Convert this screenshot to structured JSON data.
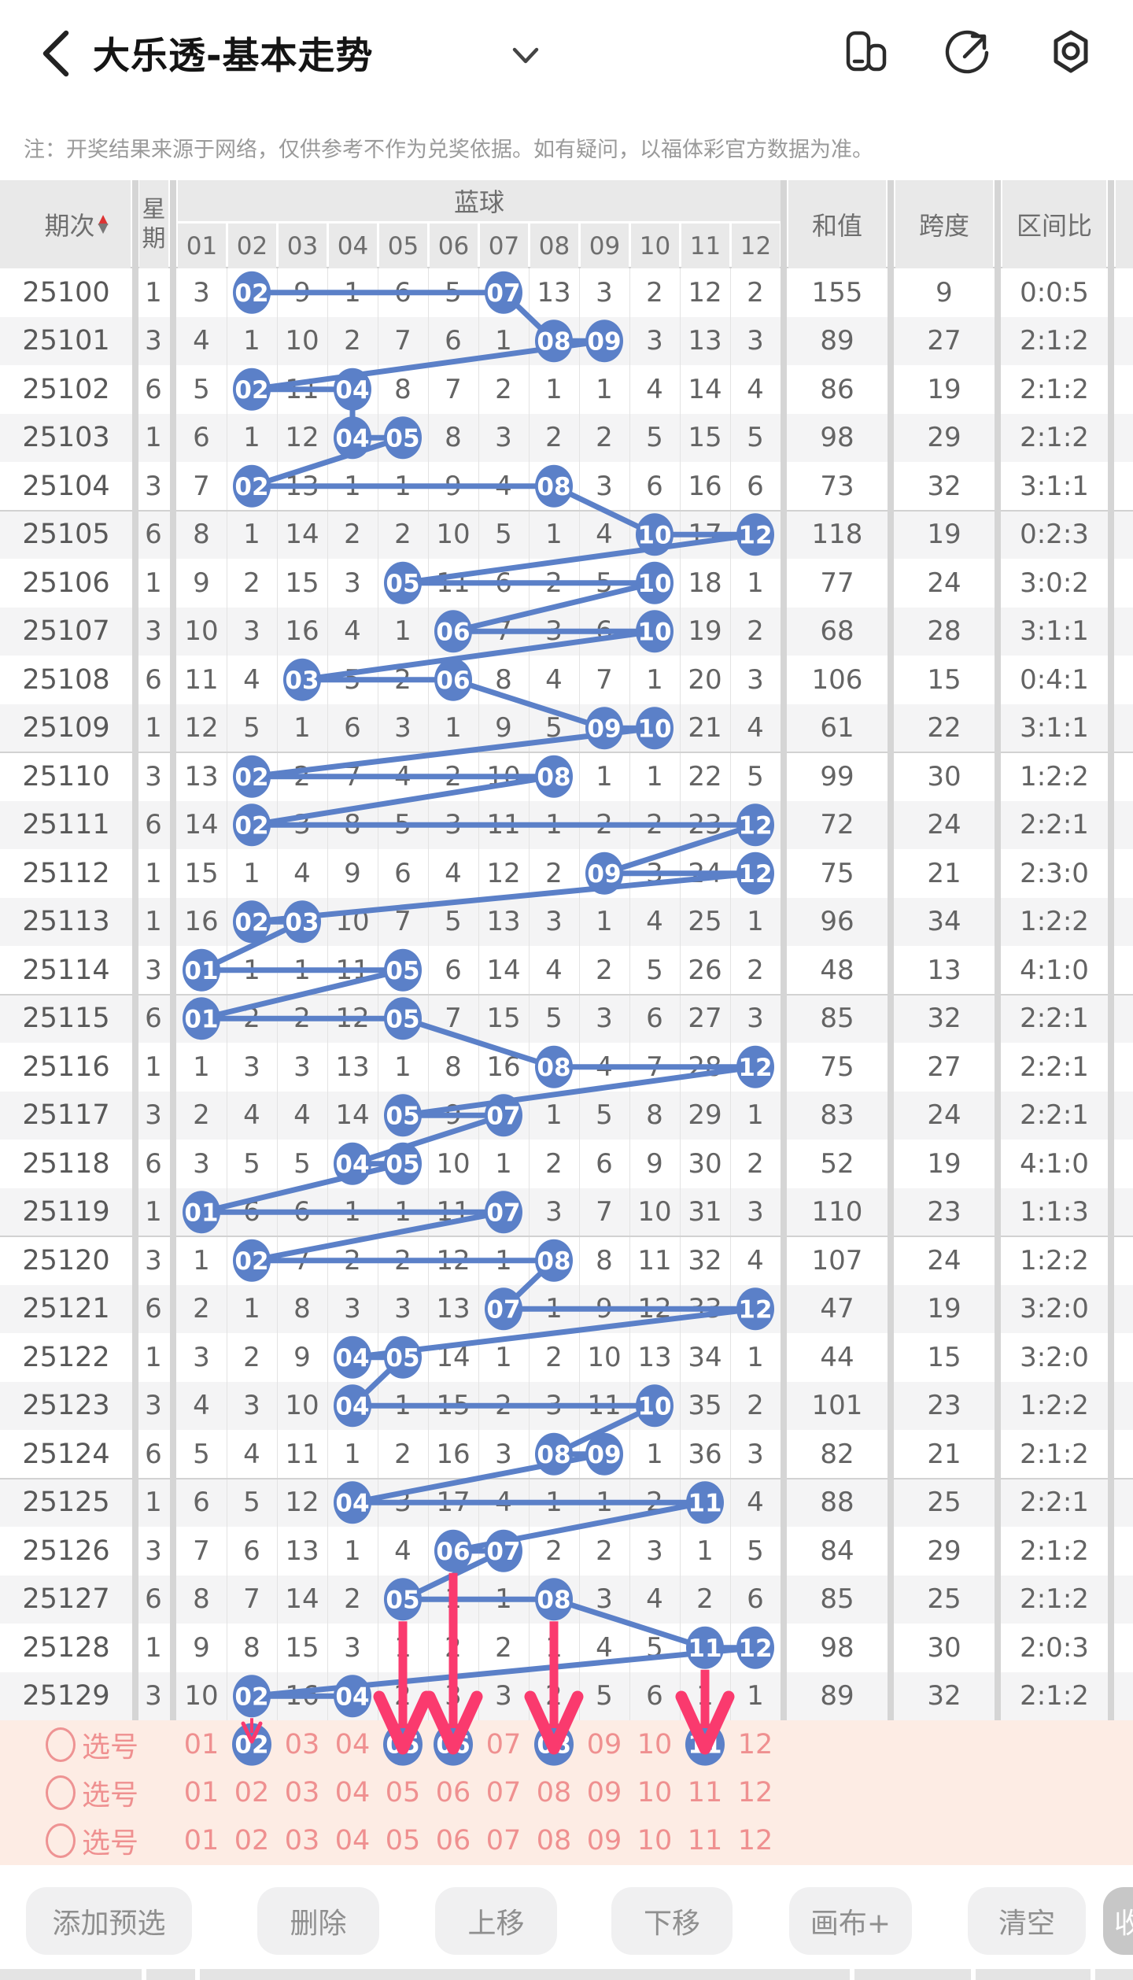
{
  "app": {
    "title": "大乐透-基本走势",
    "back_icon": "back-chevron-icon",
    "action_icons": [
      "app-switcher-icon",
      "share-icon",
      "settings-icon"
    ]
  },
  "notice": "注：开奖结果来源于网络，仅供参考不作为兑奖依据。如有疑问，以福体彩官方数据为准。",
  "chart": {
    "headers": {
      "period": "期次",
      "week": "星期",
      "group": "蓝球",
      "ball_labels": [
        "01",
        "02",
        "03",
        "04",
        "05",
        "06",
        "07",
        "08",
        "09",
        "10",
        "11",
        "12"
      ],
      "sum": "和值",
      "span": "跨度",
      "ratio": "区间比"
    },
    "rows": [
      {
        "period": "25100",
        "week": "1",
        "cells": [
          "3",
          "02",
          "9",
          "1",
          "6",
          "5",
          "07",
          "13",
          "3",
          "2",
          "12",
          "2"
        ],
        "circled": [
          2,
          7
        ],
        "sum": "155",
        "span": "9",
        "ratio": "0:0:5"
      },
      {
        "period": "25101",
        "week": "3",
        "cells": [
          "4",
          "1",
          "10",
          "2",
          "7",
          "6",
          "1",
          "08",
          "09",
          "3",
          "13",
          "3"
        ],
        "circled": [
          8,
          9
        ],
        "sum": "89",
        "span": "27",
        "ratio": "2:1:2"
      },
      {
        "period": "25102",
        "week": "6",
        "cells": [
          "5",
          "02",
          "11",
          "04",
          "8",
          "7",
          "2",
          "1",
          "1",
          "4",
          "14",
          "4"
        ],
        "circled": [
          2,
          4
        ],
        "sum": "86",
        "span": "19",
        "ratio": "2:1:2"
      },
      {
        "period": "25103",
        "week": "1",
        "cells": [
          "6",
          "1",
          "12",
          "04",
          "05",
          "8",
          "3",
          "2",
          "2",
          "5",
          "15",
          "5"
        ],
        "circled": [
          4,
          5
        ],
        "sum": "98",
        "span": "29",
        "ratio": "2:1:2"
      },
      {
        "period": "25104",
        "week": "3",
        "cells": [
          "7",
          "02",
          "13",
          "1",
          "1",
          "9",
          "4",
          "08",
          "3",
          "6",
          "16",
          "6"
        ],
        "circled": [
          2,
          8
        ],
        "sum": "73",
        "span": "32",
        "ratio": "3:1:1"
      },
      {
        "period": "25105",
        "week": "6",
        "cells": [
          "8",
          "1",
          "14",
          "2",
          "2",
          "10",
          "5",
          "1",
          "4",
          "10",
          "17",
          "12"
        ],
        "circled": [
          10,
          12
        ],
        "sum": "118",
        "span": "19",
        "ratio": "0:2:3"
      },
      {
        "period": "25106",
        "week": "1",
        "cells": [
          "9",
          "2",
          "15",
          "3",
          "05",
          "11",
          "6",
          "2",
          "5",
          "10",
          "18",
          "1"
        ],
        "circled": [
          5,
          10
        ],
        "sum": "77",
        "span": "24",
        "ratio": "3:0:2"
      },
      {
        "period": "25107",
        "week": "3",
        "cells": [
          "10",
          "3",
          "16",
          "4",
          "1",
          "06",
          "7",
          "3",
          "6",
          "10",
          "19",
          "2"
        ],
        "circled": [
          6,
          10
        ],
        "sum": "68",
        "span": "28",
        "ratio": "3:1:1"
      },
      {
        "period": "25108",
        "week": "6",
        "cells": [
          "11",
          "4",
          "03",
          "5",
          "2",
          "06",
          "8",
          "4",
          "7",
          "1",
          "20",
          "3"
        ],
        "circled": [
          3,
          6
        ],
        "sum": "106",
        "span": "15",
        "ratio": "0:4:1"
      },
      {
        "period": "25109",
        "week": "1",
        "cells": [
          "12",
          "5",
          "1",
          "6",
          "3",
          "1",
          "9",
          "5",
          "09",
          "10",
          "21",
          "4"
        ],
        "circled": [
          9,
          10
        ],
        "sum": "61",
        "span": "22",
        "ratio": "3:1:1"
      },
      {
        "period": "25110",
        "week": "3",
        "cells": [
          "13",
          "02",
          "2",
          "7",
          "4",
          "2",
          "10",
          "08",
          "1",
          "1",
          "22",
          "5"
        ],
        "circled": [
          2,
          8
        ],
        "sum": "99",
        "span": "30",
        "ratio": "1:2:2"
      },
      {
        "period": "25111",
        "week": "6",
        "cells": [
          "14",
          "02",
          "3",
          "8",
          "5",
          "3",
          "11",
          "1",
          "2",
          "2",
          "23",
          "12"
        ],
        "circled": [
          2,
          12
        ],
        "sum": "72",
        "span": "24",
        "ratio": "2:2:1"
      },
      {
        "period": "25112",
        "week": "1",
        "cells": [
          "15",
          "1",
          "4",
          "9",
          "6",
          "4",
          "12",
          "2",
          "09",
          "3",
          "24",
          "12"
        ],
        "circled": [
          9,
          12
        ],
        "sum": "75",
        "span": "21",
        "ratio": "2:3:0"
      },
      {
        "period": "25113",
        "week": "1",
        "cells": [
          "16",
          "02",
          "03",
          "10",
          "7",
          "5",
          "13",
          "3",
          "1",
          "4",
          "25",
          "1"
        ],
        "circled": [
          2,
          3
        ],
        "sum": "96",
        "span": "34",
        "ratio": "1:2:2"
      },
      {
        "period": "25114",
        "week": "3",
        "cells": [
          "01",
          "1",
          "1",
          "11",
          "05",
          "6",
          "14",
          "4",
          "2",
          "5",
          "26",
          "2"
        ],
        "circled": [
          1,
          5
        ],
        "sum": "48",
        "span": "13",
        "ratio": "4:1:0"
      },
      {
        "period": "25115",
        "week": "6",
        "cells": [
          "01",
          "2",
          "2",
          "12",
          "05",
          "7",
          "15",
          "5",
          "3",
          "6",
          "27",
          "3"
        ],
        "circled": [
          1,
          5
        ],
        "sum": "85",
        "span": "32",
        "ratio": "2:2:1"
      },
      {
        "period": "25116",
        "week": "1",
        "cells": [
          "1",
          "3",
          "3",
          "13",
          "1",
          "8",
          "16",
          "08",
          "4",
          "7",
          "28",
          "12"
        ],
        "circled": [
          8,
          12
        ],
        "sum": "75",
        "span": "27",
        "ratio": "2:2:1"
      },
      {
        "period": "25117",
        "week": "3",
        "cells": [
          "2",
          "4",
          "4",
          "14",
          "05",
          "9",
          "07",
          "1",
          "5",
          "8",
          "29",
          "1"
        ],
        "circled": [
          5,
          7
        ],
        "sum": "83",
        "span": "24",
        "ratio": "2:2:1"
      },
      {
        "period": "25118",
        "week": "6",
        "cells": [
          "3",
          "5",
          "5",
          "04",
          "05",
          "10",
          "1",
          "2",
          "6",
          "9",
          "30",
          "2"
        ],
        "circled": [
          4,
          5
        ],
        "sum": "52",
        "span": "19",
        "ratio": "4:1:0"
      },
      {
        "period": "25119",
        "week": "1",
        "cells": [
          "01",
          "6",
          "6",
          "1",
          "1",
          "11",
          "07",
          "3",
          "7",
          "10",
          "31",
          "3"
        ],
        "circled": [
          1,
          7
        ],
        "sum": "110",
        "span": "23",
        "ratio": "1:1:3"
      },
      {
        "period": "25120",
        "week": "3",
        "cells": [
          "1",
          "02",
          "7",
          "2",
          "2",
          "12",
          "1",
          "08",
          "8",
          "11",
          "32",
          "4"
        ],
        "circled": [
          2,
          8
        ],
        "sum": "107",
        "span": "24",
        "ratio": "1:2:2"
      },
      {
        "period": "25121",
        "week": "6",
        "cells": [
          "2",
          "1",
          "8",
          "3",
          "3",
          "13",
          "07",
          "1",
          "9",
          "12",
          "33",
          "12"
        ],
        "circled": [
          7,
          12
        ],
        "sum": "47",
        "span": "19",
        "ratio": "3:2:0"
      },
      {
        "period": "25122",
        "week": "1",
        "cells": [
          "3",
          "2",
          "9",
          "04",
          "05",
          "14",
          "1",
          "2",
          "10",
          "13",
          "34",
          "1"
        ],
        "circled": [
          4,
          5
        ],
        "sum": "44",
        "span": "15",
        "ratio": "3:2:0"
      },
      {
        "period": "25123",
        "week": "3",
        "cells": [
          "4",
          "3",
          "10",
          "04",
          "1",
          "15",
          "2",
          "3",
          "11",
          "10",
          "35",
          "2"
        ],
        "circled": [
          4,
          10
        ],
        "sum": "101",
        "span": "23",
        "ratio": "1:2:2"
      },
      {
        "period": "25124",
        "week": "6",
        "cells": [
          "5",
          "4",
          "11",
          "1",
          "2",
          "16",
          "3",
          "08",
          "09",
          "1",
          "36",
          "3"
        ],
        "circled": [
          8,
          9
        ],
        "sum": "82",
        "span": "21",
        "ratio": "2:1:2"
      },
      {
        "period": "25125",
        "week": "1",
        "cells": [
          "6",
          "5",
          "12",
          "04",
          "3",
          "17",
          "4",
          "1",
          "1",
          "2",
          "11",
          "4"
        ],
        "circled": [
          4,
          11
        ],
        "sum": "88",
        "span": "25",
        "ratio": "2:2:1"
      },
      {
        "period": "25126",
        "week": "3",
        "cells": [
          "7",
          "6",
          "13",
          "1",
          "4",
          "06",
          "07",
          "2",
          "2",
          "3",
          "1",
          "5"
        ],
        "circled": [
          6,
          7
        ],
        "sum": "84",
        "span": "29",
        "ratio": "2:1:2"
      },
      {
        "period": "25127",
        "week": "6",
        "cells": [
          "8",
          "7",
          "14",
          "2",
          "05",
          "1",
          "1",
          "08",
          "3",
          "4",
          "2",
          "6"
        ],
        "circled": [
          5,
          8
        ],
        "sum": "85",
        "span": "25",
        "ratio": "2:1:2"
      },
      {
        "period": "25128",
        "week": "1",
        "cells": [
          "9",
          "8",
          "15",
          "3",
          "1",
          "2",
          "2",
          "1",
          "4",
          "5",
          "11",
          "12"
        ],
        "circled": [
          11,
          12
        ],
        "sum": "98",
        "span": "30",
        "ratio": "2:0:3"
      },
      {
        "period": "25129",
        "week": "3",
        "cells": [
          "10",
          "02",
          "16",
          "04",
          "2",
          "3",
          "3",
          "2",
          "5",
          "6",
          "1",
          "1"
        ],
        "circled": [
          2,
          4
        ],
        "sum": "89",
        "span": "32",
        "ratio": "2:1:2"
      }
    ]
  },
  "selection": {
    "row_label": "选号",
    "ball_labels": [
      "01",
      "02",
      "03",
      "04",
      "05",
      "06",
      "07",
      "08",
      "09",
      "10",
      "11",
      "12"
    ],
    "rows": [
      {
        "selected": [
          2,
          5,
          6,
          8,
          11
        ]
      },
      {
        "selected": []
      },
      {
        "selected": []
      }
    ],
    "arrows": {
      "big": [
        {
          "col": 5,
          "from_row": 27
        },
        {
          "col": 6,
          "from_row": 26
        },
        {
          "col": 8,
          "from_row": 27
        },
        {
          "col": 11,
          "from_row": 28
        }
      ],
      "small": [
        {
          "col": 2,
          "from_row": 29
        }
      ]
    }
  },
  "toolbar": {
    "buttons": [
      "添加预选",
      "删除",
      "上移",
      "下移",
      "画布+",
      "清空",
      "收起"
    ]
  },
  "colors": {
    "accent_blue": "#5b80c8",
    "arrow_pink": "#fa3a6e",
    "selection_bg": "#fdece4",
    "selection_text": "#ef9090",
    "header_bg": "#e9e9e9",
    "row_alt": "#f4f4f5",
    "separator": "#d5d5d5",
    "number_text": "#646464",
    "sort_up_red": "#dd3333",
    "collapse_btn_bg": "#c7c7c7"
  }
}
